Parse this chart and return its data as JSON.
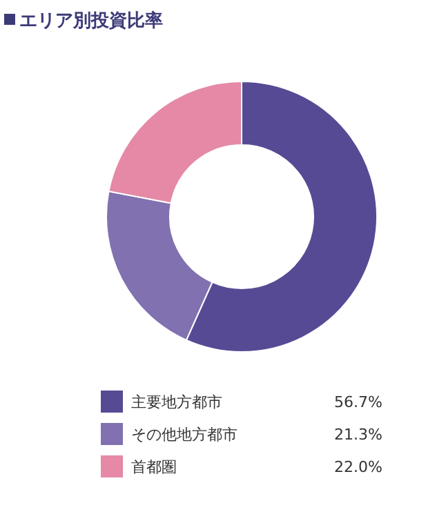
{
  "chart_data": {
    "type": "donut",
    "title": "エリア別投資比率",
    "categories": [
      "主要地方都市",
      "その他地方都市",
      "首都圏"
    ],
    "values": [
      56.7,
      21.3,
      22.0
    ],
    "colors": [
      "#574a94",
      "#8271b0",
      "#e589a6"
    ],
    "value_labels": [
      "56.7%",
      "21.3%",
      "22.0%"
    ],
    "legend": "bottom"
  }
}
